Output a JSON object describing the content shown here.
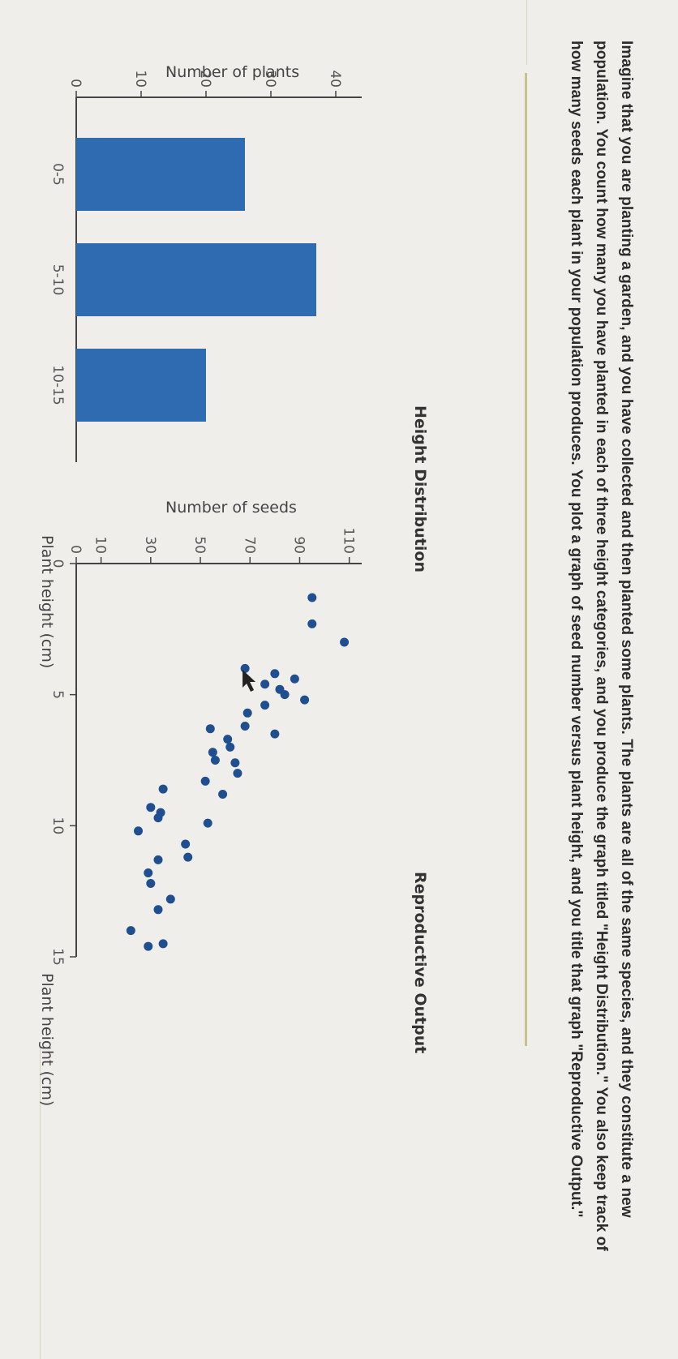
{
  "question": "Imagine that you are planting a garden, and you have collected and then planted some plants. The plants are all of the same species, and they constitute a new population. You count how many you have planted in each of three height categories, and you produce the graph titled \"Height Distribution.\" You also keep track of how many seeds each plant in your population produces. You plot a graph of seed number versus plant height, and you title that graph \"Reproductive Output.\"",
  "colors": {
    "bar": "#2e6bb0",
    "dot": "#1f4f8f",
    "background": "#efeeeb"
  },
  "chart_data": [
    {
      "type": "bar",
      "title": "Height Distribution",
      "xlabel": "Plant height (cm)",
      "ylabel": "Number of plants",
      "categories": [
        "0-5",
        "5-10",
        "10-15"
      ],
      "values": [
        26,
        37,
        20
      ],
      "ylim": [
        0,
        44
      ],
      "yticks": [
        0,
        10,
        20,
        30,
        40
      ]
    },
    {
      "type": "scatter",
      "title": "Reproductive Output",
      "xlabel": "Plant height (cm)",
      "ylabel": "Number of seeds",
      "xlim": [
        0,
        15
      ],
      "ylim": [
        0,
        115
      ],
      "xticks": [
        0,
        5,
        10,
        15
      ],
      "yticks": [
        0,
        10,
        30,
        50,
        70,
        90,
        110
      ],
      "points": [
        {
          "x": 1.3,
          "y": 95
        },
        {
          "x": 2.3,
          "y": 95
        },
        {
          "x": 3.0,
          "y": 108
        },
        {
          "x": 4.0,
          "y": 68
        },
        {
          "x": 4.2,
          "y": 80
        },
        {
          "x": 4.4,
          "y": 88
        },
        {
          "x": 4.6,
          "y": 76
        },
        {
          "x": 4.8,
          "y": 82
        },
        {
          "x": 5.0,
          "y": 84
        },
        {
          "x": 5.2,
          "y": 92
        },
        {
          "x": 5.4,
          "y": 76
        },
        {
          "x": 5.7,
          "y": 69
        },
        {
          "x": 6.2,
          "y": 68
        },
        {
          "x": 6.3,
          "y": 54
        },
        {
          "x": 6.5,
          "y": 80
        },
        {
          "x": 6.7,
          "y": 61
        },
        {
          "x": 7.0,
          "y": 62
        },
        {
          "x": 7.2,
          "y": 55
        },
        {
          "x": 7.5,
          "y": 56
        },
        {
          "x": 7.6,
          "y": 64
        },
        {
          "x": 8.0,
          "y": 65
        },
        {
          "x": 8.3,
          "y": 52
        },
        {
          "x": 8.6,
          "y": 35
        },
        {
          "x": 8.8,
          "y": 59
        },
        {
          "x": 9.3,
          "y": 30
        },
        {
          "x": 9.5,
          "y": 34
        },
        {
          "x": 9.7,
          "y": 33
        },
        {
          "x": 10.2,
          "y": 25
        },
        {
          "x": 9.9,
          "y": 53
        },
        {
          "x": 10.7,
          "y": 44
        },
        {
          "x": 11.2,
          "y": 45
        },
        {
          "x": 11.3,
          "y": 33
        },
        {
          "x": 11.8,
          "y": 29
        },
        {
          "x": 12.2,
          "y": 30
        },
        {
          "x": 12.8,
          "y": 38
        },
        {
          "x": 13.2,
          "y": 33
        },
        {
          "x": 14.0,
          "y": 22
        },
        {
          "x": 14.5,
          "y": 35
        },
        {
          "x": 14.6,
          "y": 29
        }
      ]
    }
  ]
}
